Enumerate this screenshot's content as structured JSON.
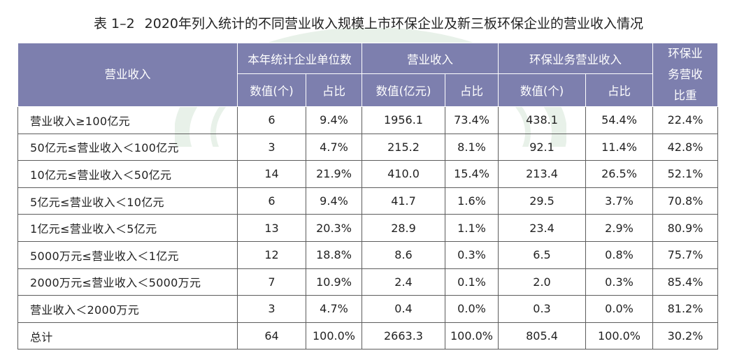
{
  "title": {
    "number": "表 1–2",
    "text": "2020年列入统计的不同营业收入规模上市环保企业及新三板环保企业的营业收入情况"
  },
  "header": {
    "row_label": "营业收入",
    "groups": [
      "本年统计企业单位数",
      "营业收入",
      "环保业务营业收入"
    ],
    "ratio_column": "环保业务营收比重",
    "subheads": [
      "数值(个)",
      "占比",
      "数值(亿元)",
      "占比",
      "数值(个)",
      "占比"
    ]
  },
  "rows": [
    {
      "label": "营业收入≥100亿元",
      "values": [
        "6",
        "9.4%",
        "1956.1",
        "73.4%",
        "438.1",
        "54.4%",
        "22.4%"
      ]
    },
    {
      "label": "50亿元≤营业收入＜100亿元",
      "values": [
        "3",
        "4.7%",
        "215.2",
        "8.1%",
        "92.1",
        "11.4%",
        "42.8%"
      ]
    },
    {
      "label": "10亿元≤营业收入＜50亿元",
      "values": [
        "14",
        "21.9%",
        "410.0",
        "15.4%",
        "213.4",
        "26.5%",
        "52.1%"
      ]
    },
    {
      "label": "5亿元≤营业收入＜10亿元",
      "values": [
        "6",
        "9.4%",
        "41.7",
        "1.6%",
        "29.5",
        "3.7%",
        "70.8%"
      ]
    },
    {
      "label": "1亿元≤营业收入＜5亿元",
      "values": [
        "13",
        "20.3%",
        "28.9",
        "1.1%",
        "23.4",
        "2.9%",
        "80.9%"
      ]
    },
    {
      "label": "5000万元≤营业收入＜1亿元",
      "values": [
        "12",
        "18.8%",
        "8.6",
        "0.3%",
        "6.5",
        "0.8%",
        "75.7%"
      ]
    },
    {
      "label": "2000万元≤营业收入＜5000万元",
      "values": [
        "7",
        "10.9%",
        "2.4",
        "0.1%",
        "2.0",
        "0.3%",
        "85.4%"
      ]
    },
    {
      "label": "营业收入＜2000万元",
      "values": [
        "3",
        "4.7%",
        "0.4",
        "0.0%",
        "0.3",
        "0.0%",
        "81.2%"
      ]
    },
    {
      "label": "总计",
      "values": [
        "64",
        "100.0%",
        "2663.3",
        "100.0%",
        "805.4",
        "100.0%",
        "30.2%"
      ]
    }
  ],
  "colors": {
    "header_bg": "#7d7fae",
    "header_text": "#ffffff",
    "watermark": "#2e7d32"
  }
}
